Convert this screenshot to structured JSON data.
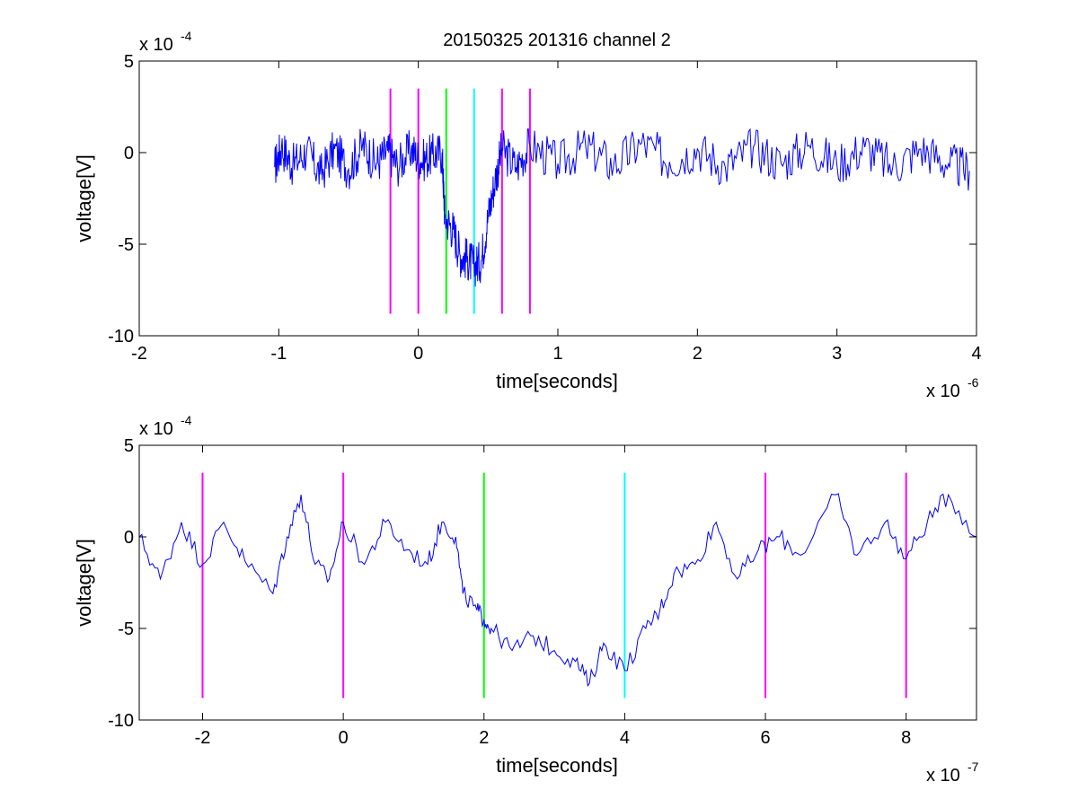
{
  "figure": {
    "title": "20150325 201316 channel 2",
    "background": "#ffffff"
  },
  "colors": {
    "trace": "#0000ff",
    "marker_magenta": "#ff00ff",
    "marker_green": "#00ff00",
    "marker_cyan": "#00ffff",
    "axes": "#000000"
  },
  "chart_data": [
    {
      "type": "line",
      "title": "20150325 201316 channel 2",
      "xlabel": "time[seconds]",
      "ylabel": "voltage[V]",
      "x_exponent_label": "x 10",
      "x_exponent": "-6",
      "y_exponent_label": "x 10",
      "y_exponent": "-4",
      "xlim": [
        -2,
        4
      ],
      "ylim": [
        -10,
        5
      ],
      "x_ticks": [
        -2,
        -1,
        0,
        1,
        2,
        3,
        4
      ],
      "y_ticks": [
        -10,
        -5,
        0,
        5
      ],
      "grid": false,
      "trace_color": "#0000ff",
      "series": [
        {
          "points": [
            [
              -1.03,
              -0.8
            ],
            [
              -0.98,
              0.3
            ],
            [
              -0.9,
              -0.7
            ],
            [
              -0.8,
              0.1
            ],
            [
              -0.7,
              -1.2
            ],
            [
              -0.6,
              0.2
            ],
            [
              -0.5,
              -0.9
            ],
            [
              -0.4,
              0.4
            ],
            [
              -0.3,
              -0.6
            ],
            [
              -0.22,
              0.1
            ],
            [
              -0.15,
              -0.7
            ],
            [
              -0.05,
              0.2
            ],
            [
              0.02,
              -0.5
            ],
            [
              0.1,
              -0.1
            ],
            [
              0.17,
              0.0
            ],
            [
              0.19,
              -3.5
            ],
            [
              0.25,
              -4.2
            ],
            [
              0.3,
              -5.6
            ],
            [
              0.35,
              -5.8
            ],
            [
              0.4,
              -6.2
            ],
            [
              0.45,
              -5.9
            ],
            [
              0.5,
              -3.5
            ],
            [
              0.55,
              -1.5
            ],
            [
              0.6,
              0.2
            ],
            [
              0.7,
              -0.8
            ],
            [
              0.8,
              0.4
            ],
            [
              1.0,
              -0.6
            ],
            [
              1.2,
              0.3
            ],
            [
              1.4,
              -0.7
            ],
            [
              1.6,
              0.5
            ],
            [
              1.8,
              -0.5
            ],
            [
              2.0,
              0.2
            ],
            [
              2.2,
              -0.8
            ],
            [
              2.4,
              0.3
            ],
            [
              2.6,
              -0.6
            ],
            [
              2.8,
              0.4
            ],
            [
              3.0,
              -0.7
            ],
            [
              3.2,
              0.3
            ],
            [
              3.4,
              -0.8
            ],
            [
              3.6,
              0.2
            ],
            [
              3.8,
              -0.6
            ],
            [
              3.95,
              -1.0
            ]
          ]
        }
      ],
      "markers": [
        {
          "x": -0.2,
          "color": "#ff00ff"
        },
        {
          "x": 0.0,
          "color": "#ff00ff"
        },
        {
          "x": 0.2,
          "color": "#00ff00"
        },
        {
          "x": 0.4,
          "color": "#00ffff"
        },
        {
          "x": 0.6,
          "color": "#ff00ff"
        },
        {
          "x": 0.8,
          "color": "#ff00ff"
        }
      ],
      "marker_range": [
        -8.8,
        3.5
      ]
    },
    {
      "type": "line",
      "title": "",
      "xlabel": "time[seconds]",
      "ylabel": "voltage[V]",
      "x_exponent_label": "x 10",
      "x_exponent": "-7",
      "y_exponent_label": "x 10",
      "y_exponent": "-4",
      "xlim": [
        -2.9,
        9
      ],
      "ylim": [
        -10,
        5
      ],
      "x_ticks": [
        -2,
        0,
        2,
        4,
        6,
        8
      ],
      "y_ticks": [
        -10,
        -5,
        0,
        5
      ],
      "grid": false,
      "trace_color": "#0000ff",
      "series": [
        {
          "points": [
            [
              -2.9,
              0.0
            ],
            [
              -2.6,
              -2.3
            ],
            [
              -2.3,
              0.8
            ],
            [
              -2.0,
              -1.5
            ],
            [
              -1.7,
              0.8
            ],
            [
              -1.4,
              -1.3
            ],
            [
              -1.0,
              -3.1
            ],
            [
              -0.8,
              0.0
            ],
            [
              -0.6,
              2.3
            ],
            [
              -0.4,
              -1.5
            ],
            [
              -0.2,
              -2.3
            ],
            [
              0.0,
              0.8
            ],
            [
              0.3,
              -1.5
            ],
            [
              0.6,
              0.8
            ],
            [
              0.9,
              -0.7
            ],
            [
              1.2,
              -1.5
            ],
            [
              1.4,
              0.8
            ],
            [
              1.6,
              0.0
            ],
            [
              1.7,
              -3.1
            ],
            [
              1.9,
              -4.0
            ],
            [
              2.0,
              -4.5
            ],
            [
              2.1,
              -5.0
            ],
            [
              2.4,
              -6.2
            ],
            [
              2.7,
              -5.4
            ],
            [
              3.0,
              -6.2
            ],
            [
              3.3,
              -6.8
            ],
            [
              3.5,
              -8.0
            ],
            [
              3.7,
              -5.8
            ],
            [
              4.0,
              -7.3
            ],
            [
              4.3,
              -5.0
            ],
            [
              4.5,
              -4.0
            ],
            [
              4.7,
              -2.0
            ],
            [
              5.0,
              -1.5
            ],
            [
              5.3,
              0.8
            ],
            [
              5.6,
              -2.3
            ],
            [
              5.9,
              -0.7
            ],
            [
              6.2,
              0.0
            ],
            [
              6.5,
              -1.0
            ],
            [
              7.0,
              2.3
            ],
            [
              7.3,
              -1.0
            ],
            [
              7.7,
              0.8
            ],
            [
              8.0,
              -1.2
            ],
            [
              8.3,
              0.8
            ],
            [
              8.6,
              2.3
            ],
            [
              9.0,
              0.0
            ]
          ]
        }
      ],
      "markers": [
        {
          "x": -2,
          "color": "#ff00ff"
        },
        {
          "x": 0,
          "color": "#ff00ff"
        },
        {
          "x": 2,
          "color": "#00ff00"
        },
        {
          "x": 4,
          "color": "#00ffff"
        },
        {
          "x": 6,
          "color": "#ff00ff"
        },
        {
          "x": 8,
          "color": "#ff00ff"
        }
      ],
      "marker_range": [
        -8.8,
        3.5
      ]
    }
  ]
}
